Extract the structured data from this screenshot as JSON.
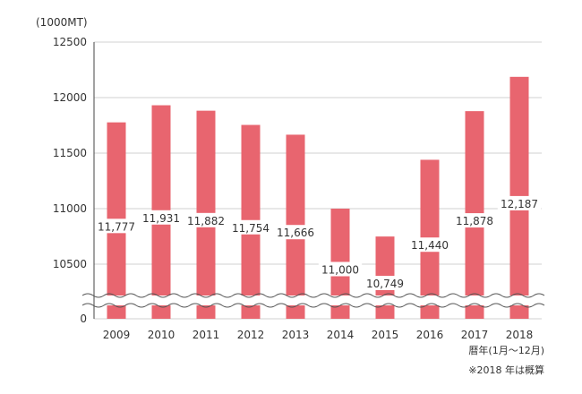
{
  "chart_data": {
    "type": "bar",
    "unit_label": "(1000MT)",
    "categories": [
      "2009",
      "2010",
      "2011",
      "2012",
      "2013",
      "2014",
      "2015",
      "2016",
      "2017",
      "2018"
    ],
    "values": [
      11777,
      11931,
      11882,
      11754,
      11666,
      11000,
      10749,
      11440,
      11878,
      12187
    ],
    "value_labels": [
      "11,777",
      "11,931",
      "11,882",
      "11,754",
      "11,666",
      "11,000",
      "10,749",
      "11,440",
      "11,878",
      "12,187"
    ],
    "ytick_labels": [
      "0",
      "10500",
      "11000",
      "11500",
      "12000",
      "12500"
    ],
    "ylim": [
      10000,
      12500
    ],
    "axis_break": true,
    "xlabel": "暦年(1月〜12月)",
    "note": "※2018 年は概算",
    "bar_color": "#e8656f",
    "grid": true
  }
}
